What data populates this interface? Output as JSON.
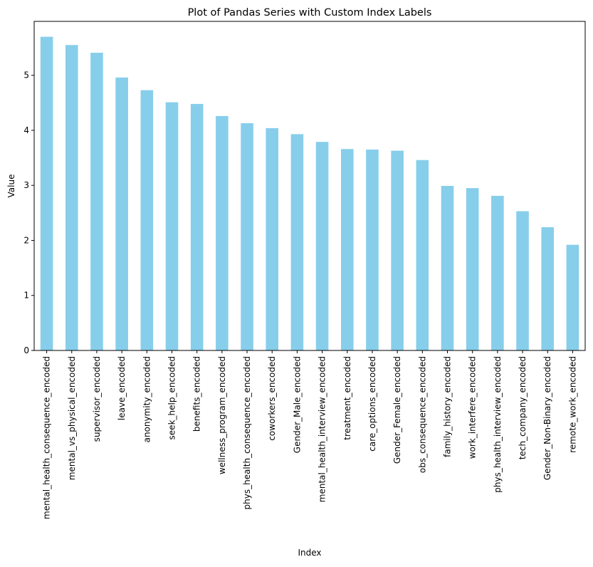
{
  "chart_data": {
    "type": "bar",
    "title": "Plot of Pandas Series with Custom Index Labels",
    "xlabel": "Index",
    "ylabel": "Value",
    "ylim": [
      0,
      5.98
    ],
    "yticks": [
      0,
      1,
      2,
      3,
      4,
      5
    ],
    "grid": false,
    "bar_color": "#87ceeb",
    "categories": [
      "mental_health_consequence_encoded",
      "mental_vs_physical_encoded",
      "supervisor_encoded",
      "leave_encoded",
      "anonymity_encoded",
      "seek_help_encoded",
      "benefits_encoded",
      "wellness_program_encoded",
      "phys_health_consequence_encoded",
      "coworkers_encoded",
      "Gender_Male_encoded",
      "mental_health_interview_encoded",
      "treatment_encoded",
      "care_options_encoded",
      "Gender_Female_encoded",
      "obs_consequence_encoded",
      "family_history_encoded",
      "work_interfere_encoded",
      "phys_health_interview_encoded",
      "tech_company_encoded",
      "Gender_Non-Binary_encoded",
      "remote_work_encoded"
    ],
    "values": [
      5.7,
      5.55,
      5.41,
      4.96,
      4.73,
      4.51,
      4.48,
      4.26,
      4.13,
      4.04,
      3.93,
      3.79,
      3.66,
      3.65,
      3.63,
      3.46,
      2.99,
      2.95,
      2.81,
      2.53,
      2.24,
      1.92
    ]
  }
}
